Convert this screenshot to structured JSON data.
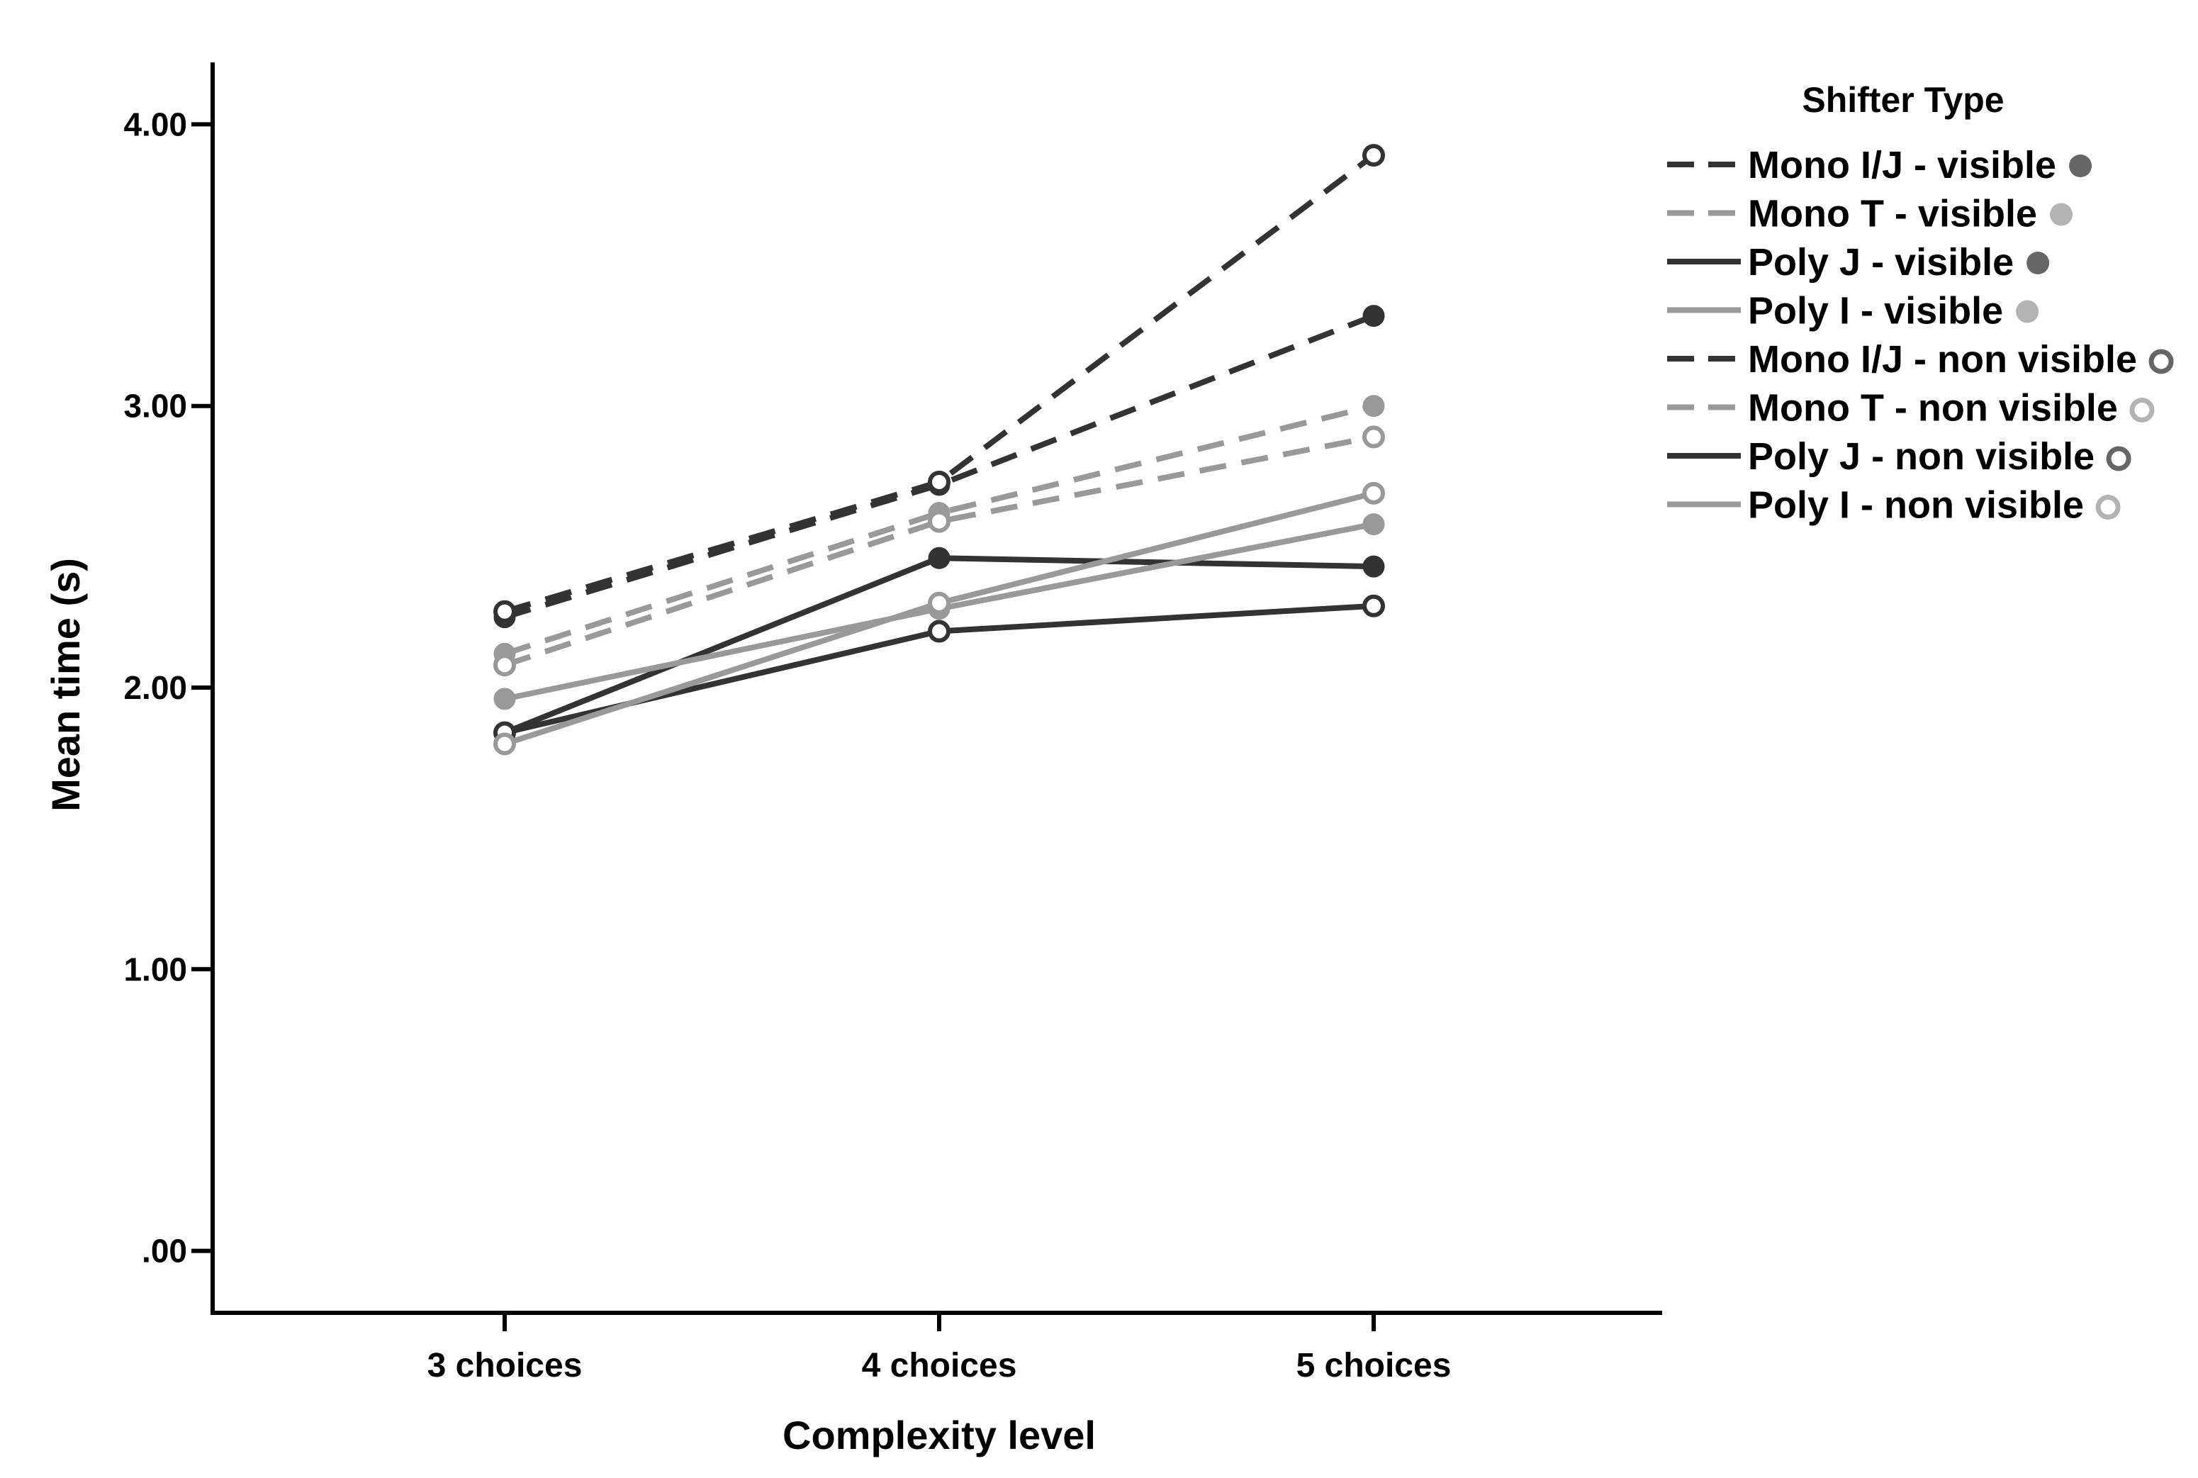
{
  "chart_data": {
    "type": "line",
    "xlabel": "Complexity level",
    "ylabel": "Mean time (s)",
    "categories": [
      "3 choices",
      "4 choices",
      "5 choices"
    ],
    "ylim": [
      -0.22,
      4.22
    ],
    "yticks": [
      0,
      1,
      2,
      3,
      4
    ],
    "ytick_labels": [
      ".00",
      "1.00",
      "2.00",
      "3.00",
      "4.00"
    ],
    "grid": false,
    "legend": {
      "title": "Shifter Type",
      "placement": "top-right"
    },
    "series": [
      {
        "name": "Mono I/J - visible",
        "values": [
          2.25,
          2.72,
          3.32
        ],
        "color": "#333333",
        "dash": true,
        "marker": "filled",
        "marker_color": "#333333",
        "legend_marker_color": "#666666"
      },
      {
        "name": "Mono T - visible",
        "values": [
          2.12,
          2.62,
          3.0
        ],
        "color": "#999999",
        "dash": true,
        "marker": "filled",
        "marker_color": "#999999",
        "legend_marker_color": "#b3b3b3"
      },
      {
        "name": "Poly J - visible",
        "values": [
          1.84,
          2.46,
          2.43
        ],
        "color": "#333333",
        "dash": false,
        "marker": "filled",
        "marker_color": "#333333",
        "legend_marker_color": "#666666"
      },
      {
        "name": "Poly I - visible",
        "values": [
          1.96,
          2.28,
          2.58
        ],
        "color": "#999999",
        "dash": false,
        "marker": "filled",
        "marker_color": "#999999",
        "legend_marker_color": "#b3b3b3"
      },
      {
        "name": "Mono I/J - non visible",
        "values": [
          2.27,
          2.73,
          3.89
        ],
        "color": "#333333",
        "dash": true,
        "marker": "open",
        "marker_color": "#333333",
        "legend_marker_color": "#666666"
      },
      {
        "name": "Mono T - non visible",
        "values": [
          2.08,
          2.59,
          2.89
        ],
        "color": "#999999",
        "dash": true,
        "marker": "open",
        "marker_color": "#999999",
        "legend_marker_color": "#b3b3b3"
      },
      {
        "name": "Poly J - non visible",
        "values": [
          1.84,
          2.2,
          2.29
        ],
        "color": "#333333",
        "dash": false,
        "marker": "open",
        "marker_color": "#333333",
        "legend_marker_color": "#666666"
      },
      {
        "name": "Poly I - non visible",
        "values": [
          1.8,
          2.3,
          2.69
        ],
        "color": "#999999",
        "dash": false,
        "marker": "open",
        "marker_color": "#999999",
        "legend_marker_color": "#b3b3b3"
      }
    ]
  }
}
